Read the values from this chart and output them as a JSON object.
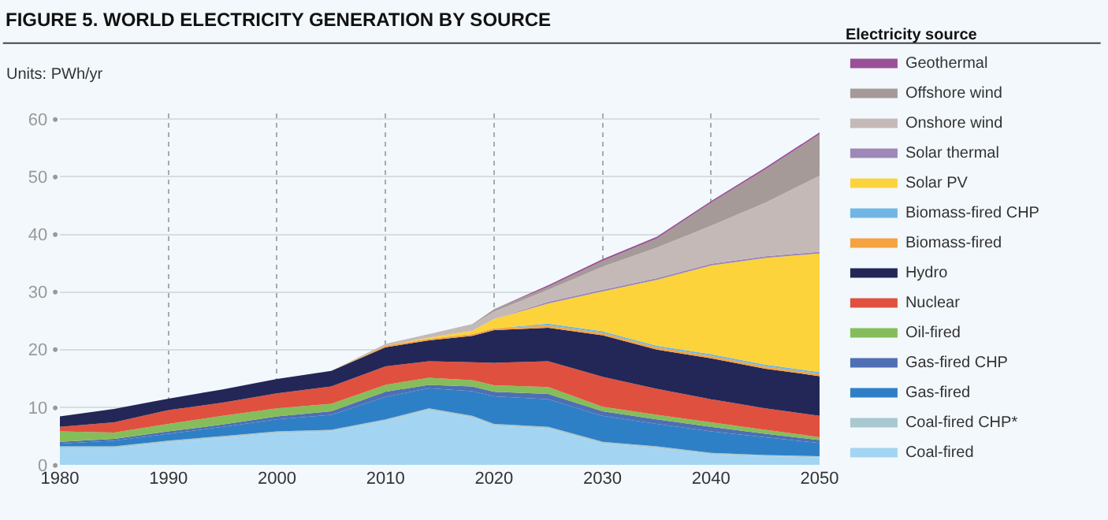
{
  "chart_data": {
    "type": "area",
    "stacked": true,
    "title": "FIGURE 5. WORLD ELECTRICITY GENERATION BY SOURCE",
    "subtitle": "Units: PWh/yr",
    "legend_title": "Electricity source",
    "x": [
      1980,
      1985,
      1990,
      1995,
      2000,
      2005,
      2010,
      2014,
      2018,
      2020,
      2025,
      2030,
      2035,
      2040,
      2045,
      2050
    ],
    "xlim": [
      1980,
      2050
    ],
    "xticks": [
      1980,
      1990,
      2000,
      2010,
      2020,
      2030,
      2040,
      2050
    ],
    "ylim": [
      0,
      61
    ],
    "yticks": [
      {
        "value": 0,
        "label": "0 •"
      },
      {
        "value": 10,
        "label": "10 •"
      },
      {
        "value": 20,
        "label": "20 •"
      },
      {
        "value": 30,
        "label": "30 •"
      },
      {
        "value": 40,
        "label": "40 •"
      },
      {
        "value": 50,
        "label": "50 •"
      },
      {
        "value": 60,
        "label": "60 •"
      }
    ],
    "grid": true,
    "legend": "right",
    "series": [
      {
        "name": "Coal-fired",
        "color": "#a3d5f3",
        "values": [
          2.9,
          2.9,
          3.9,
          4.7,
          5.5,
          5.8,
          7.6,
          9.5,
          8.2,
          6.8,
          6.3,
          3.7,
          2.9,
          1.8,
          1.5,
          1.3
        ]
      },
      {
        "name": "Coal-fired CHP*",
        "color": "#a9c8d0",
        "values": [
          0.3,
          0.3,
          0.3,
          0.3,
          0.3,
          0.3,
          0.3,
          0.3,
          0.3,
          0.3,
          0.3,
          0.3,
          0.3,
          0.3,
          0.2,
          0.2
        ]
      },
      {
        "name": "Gas-fired",
        "color": "#2e80c6",
        "values": [
          0.5,
          1.0,
          1.2,
          1.6,
          2.1,
          2.6,
          3.9,
          3.5,
          4.3,
          4.8,
          4.8,
          4.5,
          3.9,
          3.7,
          3.1,
          2.3
        ]
      },
      {
        "name": "Gas-fired CHP",
        "color": "#4e6fb3",
        "values": [
          0.3,
          0.3,
          0.4,
          0.4,
          0.5,
          0.6,
          0.9,
          0.6,
          0.8,
          0.8,
          0.9,
          0.8,
          0.8,
          0.8,
          0.6,
          0.5
        ]
      },
      {
        "name": "Oil-fired",
        "color": "#85bd5a",
        "values": [
          1.8,
          1.1,
          1.3,
          1.5,
          1.4,
          1.3,
          1.2,
          1.2,
          1.1,
          1.1,
          1.2,
          0.8,
          0.8,
          0.8,
          0.7,
          0.5
        ]
      },
      {
        "name": "Nuclear",
        "color": "#e0503f",
        "values": [
          0.8,
          1.8,
          2.4,
          2.3,
          2.6,
          3.0,
          3.2,
          2.9,
          3.1,
          3.9,
          4.5,
          5.2,
          4.5,
          4.0,
          3.7,
          3.7
        ]
      },
      {
        "name": "Hydro",
        "color": "#232757",
        "values": [
          1.8,
          2.3,
          2.0,
          2.3,
          2.5,
          2.7,
          3.3,
          3.6,
          4.6,
          5.7,
          5.8,
          7.2,
          6.8,
          7.1,
          6.9,
          6.9
        ]
      },
      {
        "name": "Biomass-fired",
        "color": "#f4a340",
        "values": [
          0,
          0,
          0,
          0,
          0,
          0,
          0.3,
          0.3,
          0.3,
          0.3,
          0.4,
          0.4,
          0.4,
          0.4,
          0.4,
          0.4
        ]
      },
      {
        "name": "Biomass-fired CHP",
        "color": "#6fb6e6",
        "values": [
          0,
          0,
          0,
          0,
          0,
          0,
          0,
          0,
          0,
          0,
          0.3,
          0.3,
          0.3,
          0.3,
          0.3,
          0.3
        ]
      },
      {
        "name": "Solar PV",
        "color": "#fdd33b",
        "values": [
          0,
          0,
          0,
          0,
          0,
          0,
          0,
          0.2,
          0.6,
          1.6,
          3.5,
          6.9,
          11.4,
          15.4,
          18.5,
          20.6
        ]
      },
      {
        "name": "Solar thermal",
        "color": "#9d88b8",
        "values": [
          0,
          0,
          0,
          0,
          0,
          0,
          0,
          0,
          0,
          0,
          0.3,
          0.3,
          0.3,
          0.3,
          0.3,
          0.3
        ]
      },
      {
        "name": "Onshore wind",
        "color": "#c5b9b8",
        "values": [
          0,
          0,
          0,
          0,
          0,
          0,
          0.3,
          0.6,
          1.0,
          1.3,
          2.1,
          4.0,
          5.3,
          6.6,
          9.3,
          13.2
        ]
      },
      {
        "name": "Offshore wind",
        "color": "#a59a97",
        "values": [
          0,
          0,
          0,
          0,
          0,
          0,
          0,
          0,
          0.1,
          0.4,
          0.5,
          1.0,
          1.6,
          4.0,
          5.8,
          7.2
        ]
      },
      {
        "name": "Geothermal",
        "color": "#9b4f96",
        "values": [
          0,
          0,
          0,
          0,
          0,
          0,
          0,
          0,
          0,
          0,
          0.3,
          0.3,
          0.3,
          0.3,
          0.3,
          0.3
        ]
      }
    ]
  }
}
